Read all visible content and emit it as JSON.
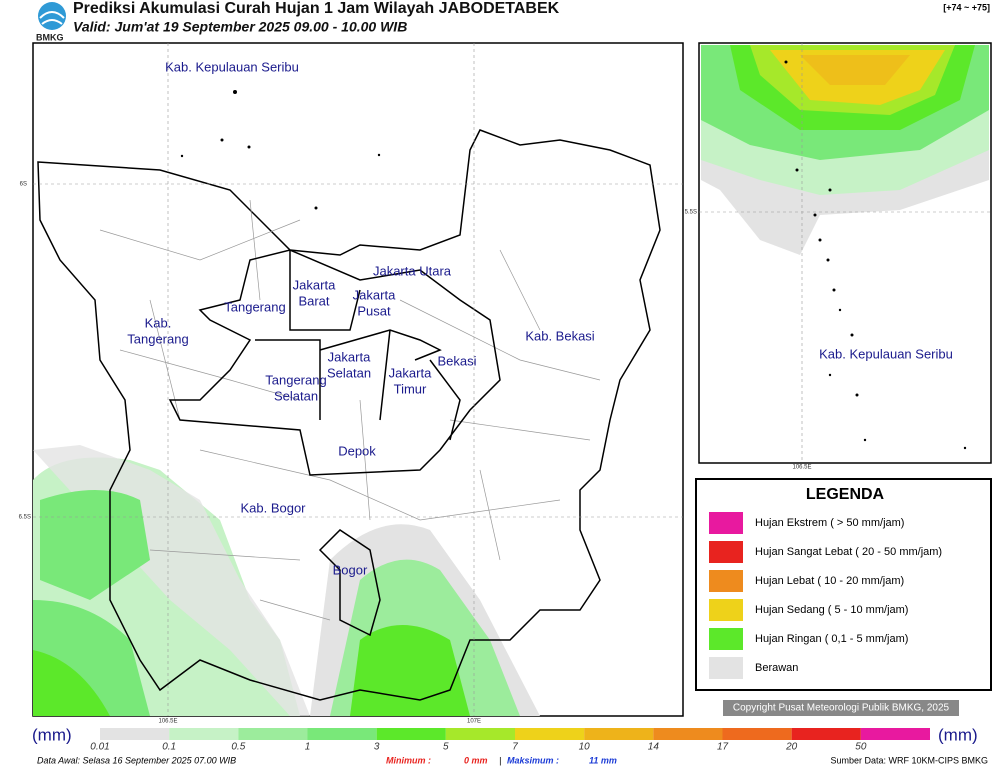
{
  "header": {
    "logo": "BMKG",
    "title": "Prediksi Akumulasi Curah Hujan 1 Jam Wilayah JABODETABEK",
    "valid": "Valid: Jum'at 19 September 2025 09.00 - 10.00 WIB",
    "range": "[+74 ~ +75]"
  },
  "map": {
    "regions": [
      [
        "Kab. Kepulauan Seribu"
      ],
      [
        "Jakarta Utara"
      ],
      [
        "Jakarta",
        "Barat"
      ],
      [
        "Jakarta",
        "Pusat"
      ],
      [
        "Tangerang"
      ],
      [
        "Kab.",
        "Tangerang"
      ],
      [
        "Kab. Bekasi"
      ],
      [
        "Jakarta",
        "Selatan"
      ],
      [
        "Jakarta",
        "Timur"
      ],
      [
        "Bekasi"
      ],
      [
        "Tangerang",
        "Selatan"
      ],
      [
        "Depok"
      ],
      [
        "Kab. Bogor"
      ],
      [
        "Bogor"
      ]
    ],
    "coords": [
      "6S",
      "6.5S",
      "106.5E",
      "107E"
    ]
  },
  "inset": {
    "regions": [
      [
        "Kab. Kepulauan Seribu"
      ]
    ],
    "coords": [
      "5.5S",
      "106.5E"
    ]
  },
  "legend": {
    "title": "LEGENDA",
    "items": [
      {
        "label": "Hujan Ekstrem ( > 50 mm/jam)",
        "color": "#e8199f"
      },
      {
        "label": "Hujan Sangat Lebat ( 20 - 50 mm/jam)",
        "color": "#e8231f"
      },
      {
        "label": "Hujan Lebat ( 10 - 20 mm/jam)",
        "color": "#ee8b1e"
      },
      {
        "label": "Hujan Sedang ( 5 - 10 mm/jam)",
        "color": "#eed21a"
      },
      {
        "label": "Hujan Ringan ( 0,1 - 5 mm/jam)",
        "color": "#5ce82a"
      },
      {
        "label": "Berawan",
        "color": "#e3e3e3"
      }
    ]
  },
  "copyright": "Copyright Pusat Meteorologi Publik BMKG, 2025",
  "scale": {
    "unit": "(mm)",
    "labels": [
      "0.01",
      "0.1",
      "0.5",
      "1",
      "3",
      "5",
      "7",
      "10",
      "14",
      "17",
      "20",
      "50"
    ],
    "colors": [
      "#e3e3e3",
      "#c6f2c6",
      "#9cec9c",
      "#79e879",
      "#5ce82a",
      "#a6e82a",
      "#eed21a",
      "#eeb31a",
      "#ee8b1e",
      "#ee6a1e",
      "#e8231f",
      "#e8199f"
    ]
  },
  "footer": {
    "data_awal": "Data Awal: Selasa 16 September 2025 07.00 WIB",
    "min_label": "Minimum :",
    "min_value": "0 mm",
    "separator": "|",
    "max_label": "Maksimum :",
    "max_value": "11 mm",
    "source": "Sumber Data: WRF 10KM-CIPS BMKG"
  }
}
